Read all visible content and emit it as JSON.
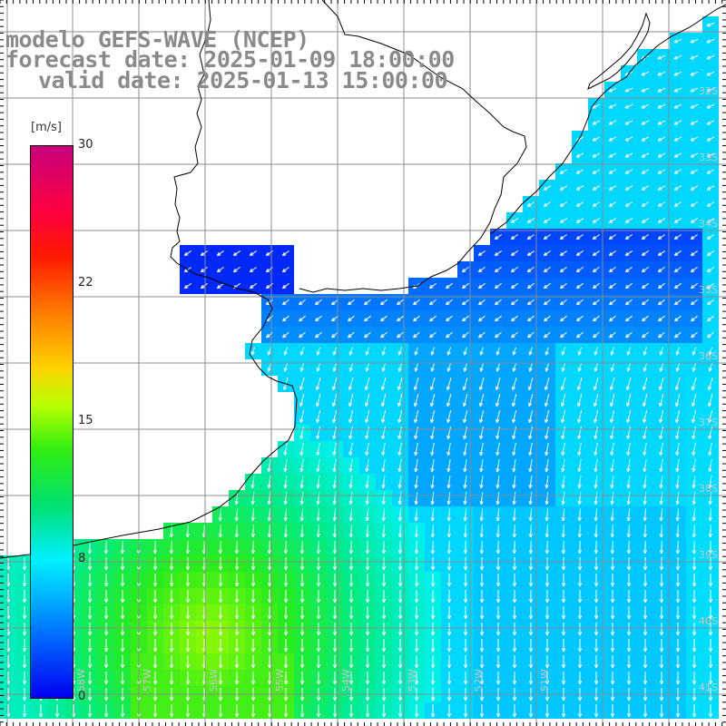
{
  "title_line1": "modelo GEFS-WAVE (NCEP)",
  "title_line2": "forecast date: 2025-01-09 18:00:00",
  "title_line3": "valid date: 2025-01-13 15:00:00",
  "colorbar": {
    "unit": "[m/s]",
    "ticks": [
      "30",
      "22",
      "15",
      "8",
      "0"
    ],
    "min": 0,
    "max": 30,
    "colors": [
      "#0000f0",
      "#0060ff",
      "#00b0ff",
      "#00f0ff",
      "#00e070",
      "#30ee10",
      "#b8ff00",
      "#ffd000",
      "#ff7a00",
      "#ff1a00",
      "#ff0040",
      "#c8007c"
    ]
  },
  "lat_labels": [
    "32S",
    "33S",
    "34S",
    "35S",
    "36S",
    "37S",
    "38S",
    "39S",
    "40S",
    "41S"
  ],
  "lon_labels": [
    "58W",
    "57W",
    "56W",
    "55W",
    "54W",
    "53W",
    "52W",
    "51W"
  ],
  "map": {
    "land_color": "#ffffff",
    "grid_color": "#9a9a9a",
    "coast_color": "#000000",
    "arrow_color": "#ffffff"
  }
}
